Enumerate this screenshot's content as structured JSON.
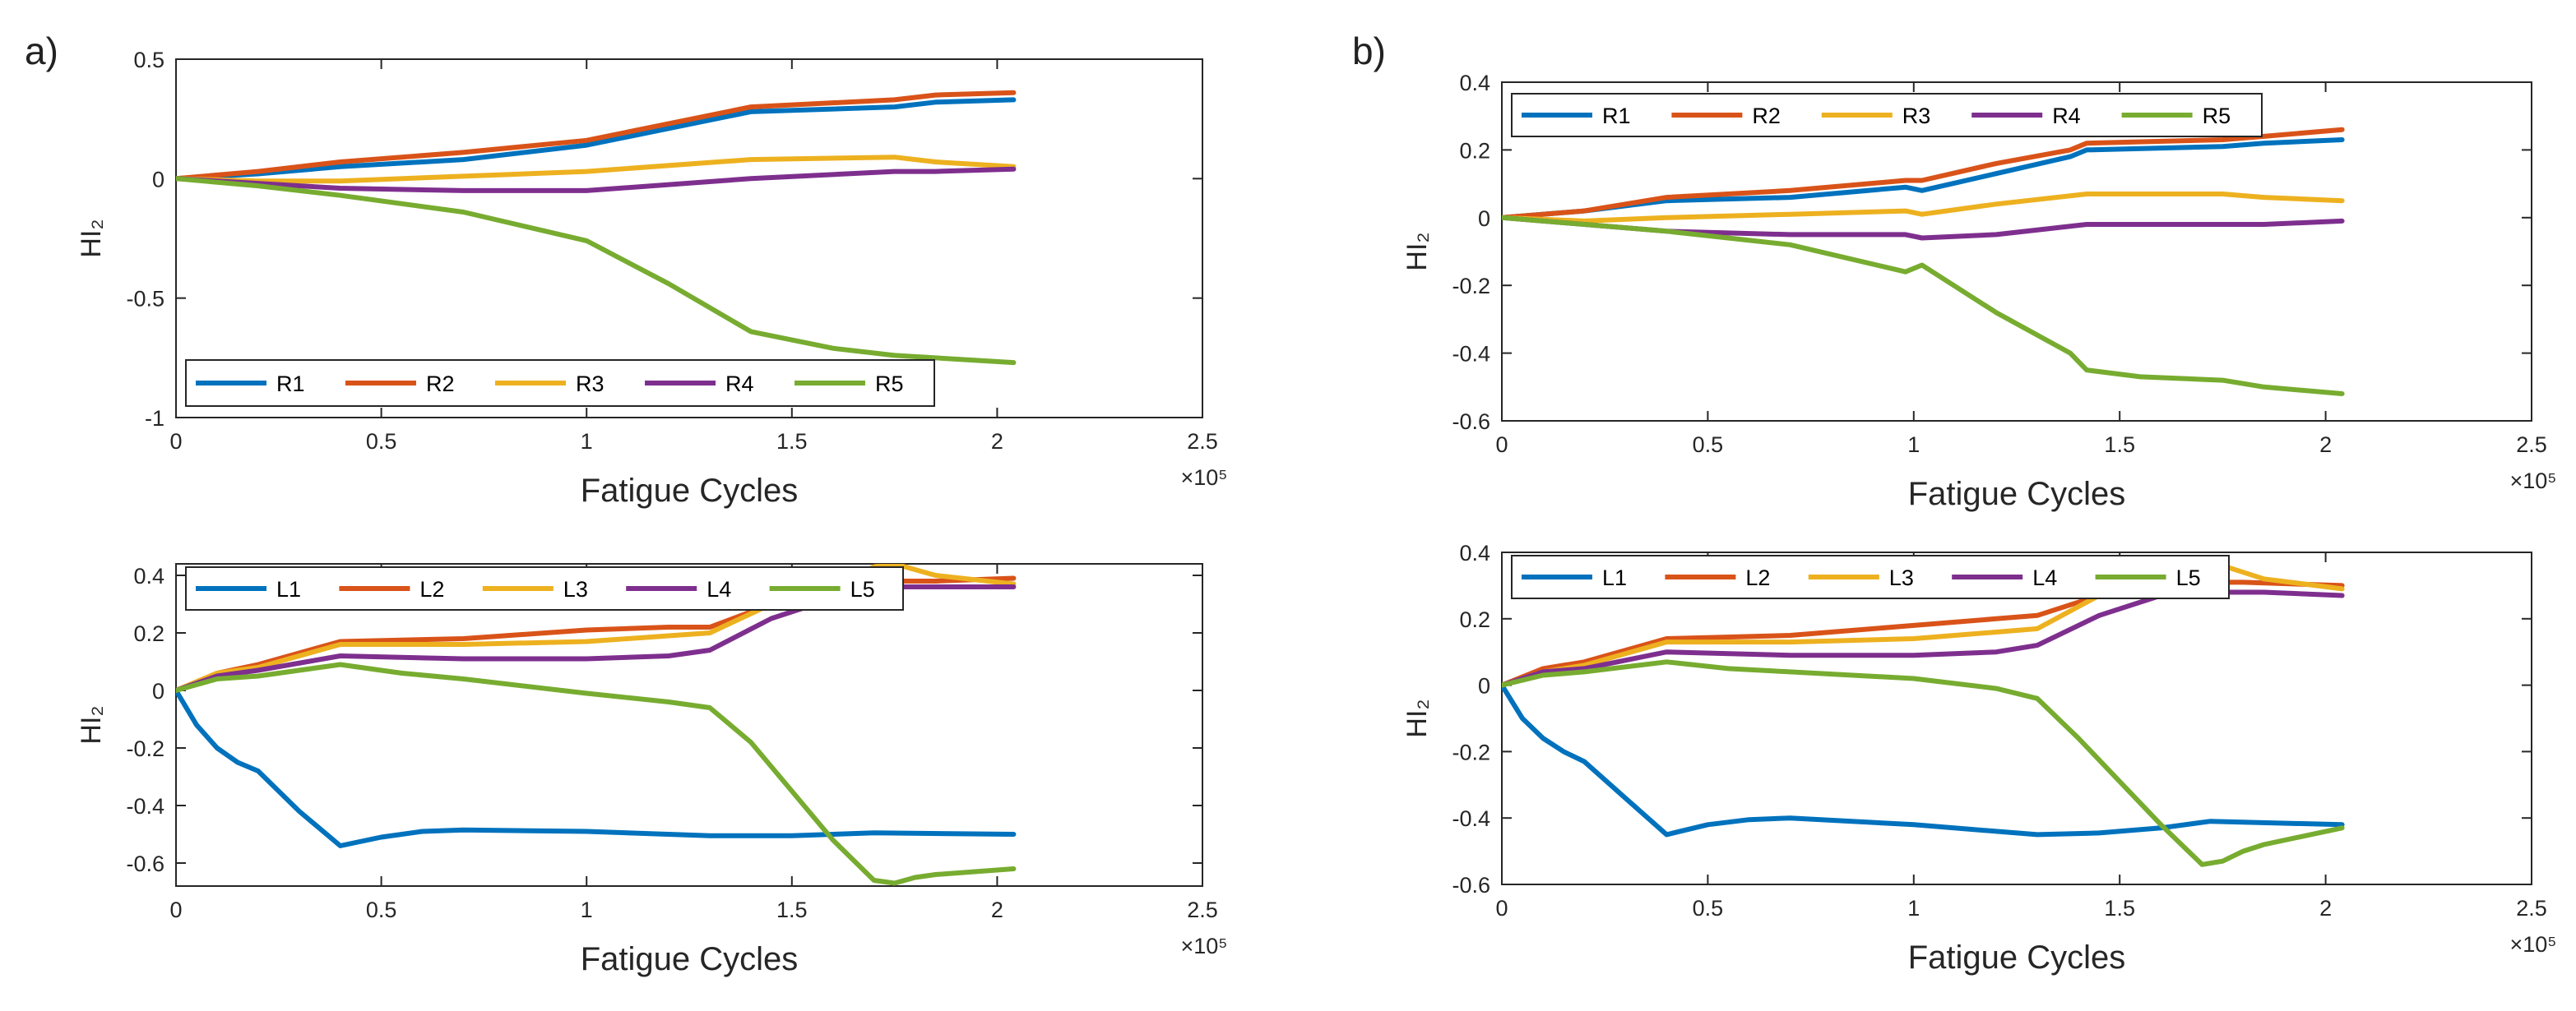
{
  "panel_labels": [
    "a)",
    "b)"
  ],
  "colors": {
    "blue": "#0072BD",
    "orange": "#D95319",
    "yellow": "#EDB120",
    "purple": "#7E2F8E",
    "green": "#77AC30"
  },
  "chart_data": [
    {
      "type": "line",
      "panel": "a)",
      "title": "",
      "xlabel": "Fatigue Cycles",
      "ylabel": "HI₂",
      "x_exponent": "×10⁵",
      "xlim": [
        0,
        2.5
      ],
      "ylim": [
        -1,
        0.5
      ],
      "xticks": [
        0,
        0.5,
        1,
        1.5,
        2,
        2.5
      ],
      "xtick_labels": [
        "0",
        "0.5",
        "1",
        "1.5",
        "2",
        "2.5"
      ],
      "yticks": [
        -1,
        -0.5,
        0,
        0.5
      ],
      "ytick_labels": [
        "-1",
        "-0.5",
        "0",
        "0.5"
      ],
      "grid": false,
      "legend_position": "bottom",
      "series": [
        {
          "name": "R1",
          "color": "#0072BD",
          "x": [
            0,
            0.2,
            0.4,
            0.7,
            1.0,
            1.4,
            1.75,
            1.85,
            2.04
          ],
          "y": [
            0,
            0.02,
            0.05,
            0.08,
            0.14,
            0.28,
            0.3,
            0.32,
            0.33
          ]
        },
        {
          "name": "R2",
          "color": "#D95319",
          "x": [
            0,
            0.2,
            0.4,
            0.7,
            1.0,
            1.4,
            1.75,
            1.85,
            2.04
          ],
          "y": [
            0,
            0.03,
            0.07,
            0.11,
            0.16,
            0.3,
            0.33,
            0.35,
            0.36
          ]
        },
        {
          "name": "R3",
          "color": "#EDB120",
          "x": [
            0,
            0.2,
            0.4,
            0.7,
            1.0,
            1.4,
            1.75,
            1.85,
            2.04
          ],
          "y": [
            0,
            -0.01,
            -0.01,
            0.01,
            0.03,
            0.08,
            0.09,
            0.07,
            0.05
          ]
        },
        {
          "name": "R4",
          "color": "#7E2F8E",
          "x": [
            0,
            0.2,
            0.4,
            0.7,
            1.0,
            1.4,
            1.75,
            1.85,
            2.04
          ],
          "y": [
            0,
            -0.02,
            -0.04,
            -0.05,
            -0.05,
            0.0,
            0.03,
            0.03,
            0.04
          ]
        },
        {
          "name": "R5",
          "color": "#77AC30",
          "x": [
            0,
            0.2,
            0.4,
            0.7,
            1.0,
            1.2,
            1.4,
            1.6,
            1.75,
            2.04
          ],
          "y": [
            0,
            -0.03,
            -0.07,
            -0.14,
            -0.26,
            -0.44,
            -0.64,
            -0.71,
            -0.74,
            -0.77
          ]
        }
      ]
    },
    {
      "type": "line",
      "panel": "a)",
      "title": "",
      "xlabel": "Fatigue Cycles",
      "ylabel": "HI₂",
      "x_exponent": "×10⁵",
      "xlim": [
        0,
        2.5
      ],
      "ylim": [
        -0.68,
        0.44
      ],
      "xticks": [
        0,
        0.5,
        1,
        1.5,
        2,
        2.5
      ],
      "xtick_labels": [
        "0",
        "0.5",
        "1",
        "1.5",
        "2",
        "2.5"
      ],
      "yticks": [
        -0.6,
        -0.4,
        -0.2,
        0,
        0.2,
        0.4
      ],
      "ytick_labels": [
        "-0.6",
        "-0.4",
        "-0.2",
        "0",
        "0.2",
        "0.4"
      ],
      "grid": false,
      "legend_position": "top",
      "series": [
        {
          "name": "L1",
          "color": "#0072BD",
          "x": [
            0,
            0.05,
            0.1,
            0.15,
            0.2,
            0.3,
            0.4,
            0.5,
            0.6,
            0.7,
            1.0,
            1.3,
            1.5,
            1.7,
            2.04
          ],
          "y": [
            0,
            -0.12,
            -0.2,
            -0.25,
            -0.28,
            -0.42,
            -0.54,
            -0.51,
            -0.49,
            -0.485,
            -0.49,
            -0.505,
            -0.505,
            -0.495,
            -0.5
          ]
        },
        {
          "name": "L2",
          "color": "#D95319",
          "x": [
            0,
            0.1,
            0.2,
            0.4,
            0.7,
            1.0,
            1.2,
            1.3,
            1.45,
            1.6,
            1.75,
            1.85,
            2.04
          ],
          "y": [
            0,
            0.06,
            0.09,
            0.17,
            0.18,
            0.21,
            0.22,
            0.22,
            0.3,
            0.36,
            0.38,
            0.38,
            0.39
          ]
        },
        {
          "name": "L3",
          "color": "#EDB120",
          "x": [
            0,
            0.1,
            0.2,
            0.4,
            0.7,
            1.0,
            1.2,
            1.3,
            1.45,
            1.6,
            1.7,
            1.75,
            1.85,
            2.04
          ],
          "y": [
            0,
            0.06,
            0.08,
            0.16,
            0.16,
            0.17,
            0.19,
            0.2,
            0.3,
            0.36,
            0.43,
            0.44,
            0.4,
            0.37
          ]
        },
        {
          "name": "L4",
          "color": "#7E2F8E",
          "x": [
            0,
            0.1,
            0.2,
            0.4,
            0.7,
            1.0,
            1.2,
            1.3,
            1.45,
            1.6,
            1.75,
            1.85,
            2.04
          ],
          "y": [
            0,
            0.05,
            0.07,
            0.12,
            0.11,
            0.11,
            0.12,
            0.14,
            0.25,
            0.32,
            0.36,
            0.36,
            0.36
          ]
        },
        {
          "name": "L5",
          "color": "#77AC30",
          "x": [
            0,
            0.1,
            0.2,
            0.4,
            0.55,
            0.7,
            1.0,
            1.2,
            1.3,
            1.4,
            1.5,
            1.6,
            1.7,
            1.75,
            1.8,
            1.85,
            2.04
          ],
          "y": [
            0,
            0.04,
            0.05,
            0.09,
            0.06,
            0.04,
            -0.01,
            -0.04,
            -0.06,
            -0.18,
            -0.35,
            -0.52,
            -0.66,
            -0.67,
            -0.65,
            -0.64,
            -0.62
          ]
        }
      ]
    },
    {
      "type": "line",
      "panel": "b)",
      "title": "",
      "xlabel": "Fatigue Cycles",
      "ylabel": "HI₂",
      "x_exponent": "×10⁵",
      "xlim": [
        0,
        2.5
      ],
      "ylim": [
        -0.6,
        0.4
      ],
      "xticks": [
        0,
        0.5,
        1,
        1.5,
        2,
        2.5
      ],
      "xtick_labels": [
        "0",
        "0.5",
        "1",
        "1.5",
        "2",
        "2.5"
      ],
      "yticks": [
        -0.6,
        -0.4,
        -0.2,
        0,
        0.2,
        0.4
      ],
      "ytick_labels": [
        "-0.6",
        "-0.4",
        "-0.2",
        "0",
        "0.2",
        "0.4"
      ],
      "grid": false,
      "legend_position": "top",
      "series": [
        {
          "name": "R1",
          "color": "#0072BD",
          "x": [
            0,
            0.2,
            0.4,
            0.7,
            0.98,
            1.02,
            1.2,
            1.38,
            1.42,
            1.75,
            1.85,
            2.04
          ],
          "y": [
            0,
            0.02,
            0.05,
            0.06,
            0.09,
            0.08,
            0.13,
            0.18,
            0.2,
            0.21,
            0.22,
            0.23
          ]
        },
        {
          "name": "R2",
          "color": "#D95319",
          "x": [
            0,
            0.2,
            0.4,
            0.7,
            0.98,
            1.02,
            1.2,
            1.38,
            1.42,
            1.75,
            1.85,
            2.04
          ],
          "y": [
            0,
            0.02,
            0.06,
            0.08,
            0.11,
            0.11,
            0.16,
            0.2,
            0.22,
            0.23,
            0.24,
            0.26
          ]
        },
        {
          "name": "R3",
          "color": "#EDB120",
          "x": [
            0,
            0.2,
            0.4,
            0.7,
            0.98,
            1.02,
            1.2,
            1.42,
            1.75,
            1.85,
            2.04
          ],
          "y": [
            0,
            -0.01,
            0.0,
            0.01,
            0.02,
            0.01,
            0.04,
            0.07,
            0.07,
            0.06,
            0.05
          ]
        },
        {
          "name": "R4",
          "color": "#7E2F8E",
          "x": [
            0,
            0.2,
            0.4,
            0.7,
            0.98,
            1.02,
            1.2,
            1.42,
            1.75,
            1.85,
            2.04
          ],
          "y": [
            0,
            -0.02,
            -0.04,
            -0.05,
            -0.05,
            -0.06,
            -0.05,
            -0.02,
            -0.02,
            -0.02,
            -0.01
          ]
        },
        {
          "name": "R5",
          "color": "#77AC30",
          "x": [
            0,
            0.2,
            0.4,
            0.7,
            0.98,
            1.02,
            1.2,
            1.38,
            1.42,
            1.55,
            1.75,
            1.85,
            2.04
          ],
          "y": [
            0,
            -0.02,
            -0.04,
            -0.08,
            -0.16,
            -0.14,
            -0.28,
            -0.4,
            -0.45,
            -0.47,
            -0.48,
            -0.5,
            -0.52
          ]
        }
      ]
    },
    {
      "type": "line",
      "panel": "b)",
      "title": "",
      "xlabel": "Fatigue Cycles",
      "ylabel": "HI₂",
      "x_exponent": "×10⁵",
      "xlim": [
        0,
        2.5
      ],
      "ylim": [
        -0.6,
        0.4
      ],
      "xticks": [
        0,
        0.5,
        1,
        1.5,
        2,
        2.5
      ],
      "xtick_labels": [
        "0",
        "0.5",
        "1",
        "1.5",
        "2",
        "2.5"
      ],
      "yticks": [
        -0.6,
        -0.4,
        -0.2,
        0,
        0.2,
        0.4
      ],
      "ytick_labels": [
        "-0.6",
        "-0.4",
        "-0.2",
        "0",
        "0.2",
        "0.4"
      ],
      "grid": false,
      "legend_position": "top",
      "series": [
        {
          "name": "L1",
          "color": "#0072BD",
          "x": [
            0,
            0.05,
            0.1,
            0.15,
            0.2,
            0.3,
            0.4,
            0.5,
            0.6,
            0.7,
            1.0,
            1.2,
            1.3,
            1.45,
            1.6,
            1.72,
            2.04
          ],
          "y": [
            0,
            -0.1,
            -0.16,
            -0.2,
            -0.23,
            -0.34,
            -0.45,
            -0.42,
            -0.405,
            -0.4,
            -0.42,
            -0.44,
            -0.45,
            -0.445,
            -0.43,
            -0.41,
            -0.42
          ]
        },
        {
          "name": "L2",
          "color": "#D95319",
          "x": [
            0,
            0.1,
            0.2,
            0.4,
            0.7,
            1.0,
            1.2,
            1.3,
            1.45,
            1.6,
            1.72,
            1.8,
            2.04
          ],
          "y": [
            0,
            0.05,
            0.07,
            0.14,
            0.15,
            0.18,
            0.2,
            0.21,
            0.27,
            0.3,
            0.31,
            0.31,
            0.3
          ]
        },
        {
          "name": "L3",
          "color": "#EDB120",
          "x": [
            0,
            0.1,
            0.2,
            0.4,
            0.7,
            1.0,
            1.2,
            1.3,
            1.45,
            1.6,
            1.7,
            1.75,
            1.85,
            2.04
          ],
          "y": [
            0,
            0.04,
            0.06,
            0.13,
            0.13,
            0.14,
            0.16,
            0.17,
            0.27,
            0.3,
            0.35,
            0.36,
            0.32,
            0.29
          ]
        },
        {
          "name": "L4",
          "color": "#7E2F8E",
          "x": [
            0,
            0.1,
            0.2,
            0.4,
            0.7,
            1.0,
            1.2,
            1.3,
            1.45,
            1.6,
            1.72,
            1.85,
            2.04
          ],
          "y": [
            0,
            0.04,
            0.05,
            0.1,
            0.09,
            0.09,
            0.1,
            0.12,
            0.21,
            0.27,
            0.28,
            0.28,
            0.27
          ]
        },
        {
          "name": "L5",
          "color": "#77AC30",
          "x": [
            0,
            0.1,
            0.2,
            0.4,
            0.55,
            0.7,
            1.0,
            1.2,
            1.3,
            1.4,
            1.5,
            1.6,
            1.7,
            1.75,
            1.8,
            1.85,
            2.04
          ],
          "y": [
            0,
            0.03,
            0.04,
            0.07,
            0.05,
            0.04,
            0.02,
            -0.01,
            -0.04,
            -0.16,
            -0.29,
            -0.42,
            -0.54,
            -0.53,
            -0.5,
            -0.48,
            -0.43
          ]
        }
      ]
    }
  ]
}
